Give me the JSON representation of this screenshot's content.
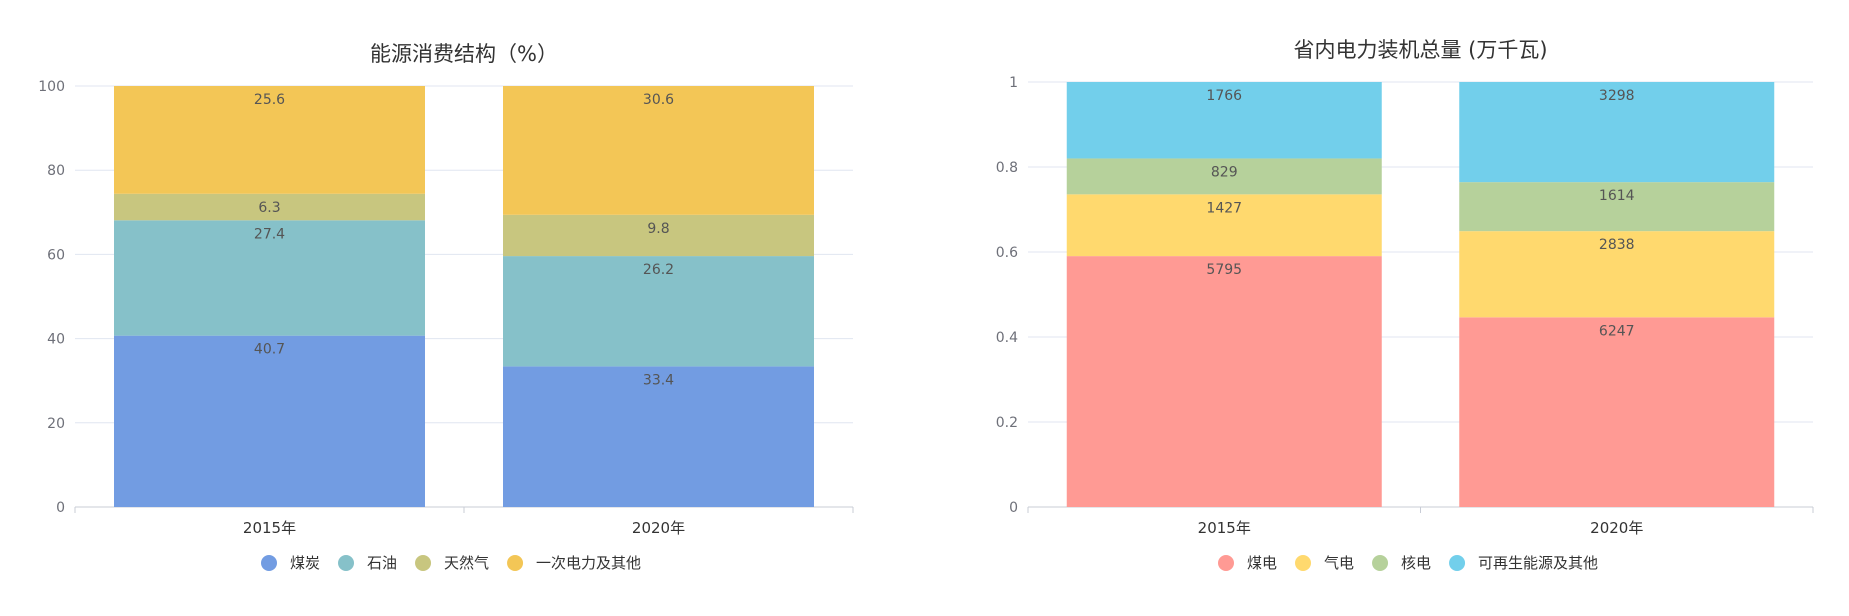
{
  "chart_data": [
    {
      "type": "bar",
      "stacked": true,
      "title": "能源消费结构（%）",
      "categories": [
        "2015年",
        "2020年"
      ],
      "ylim": [
        0,
        100
      ],
      "yticks": [
        "0",
        "20",
        "40",
        "60",
        "80",
        "100"
      ],
      "grid": true,
      "legend_position": "bottom",
      "series": [
        {
          "name": "煤炭",
          "values": [
            40.7,
            33.4
          ],
          "labels": [
            "40.7",
            "33.4"
          ],
          "color": "#729ce2"
        },
        {
          "name": "石油",
          "values": [
            27.4,
            26.2
          ],
          "labels": [
            "27.4",
            "26.2"
          ],
          "color": "#86c1c9"
        },
        {
          "name": "天然气",
          "values": [
            6.3,
            9.8
          ],
          "labels": [
            "6.3",
            "9.8"
          ],
          "color": "#c8c67f"
        },
        {
          "name": "一次电力及其他",
          "values": [
            25.6,
            30.6
          ],
          "labels": [
            "25.6",
            "30.6"
          ],
          "color": "#f3c656"
        }
      ]
    },
    {
      "type": "bar",
      "stacked": true,
      "normalized": true,
      "title": "省内电力装机总量 (万千瓦)",
      "categories": [
        "2015年",
        "2020年"
      ],
      "ylim": [
        0,
        1
      ],
      "yticks": [
        "0",
        "0.2",
        "0.4",
        "0.6",
        "0.8",
        "1"
      ],
      "grid": true,
      "legend_position": "bottom",
      "series": [
        {
          "name": "煤电",
          "values": [
            5795,
            6247
          ],
          "labels": [
            "5795",
            "6247"
          ],
          "color": "#ff9a94"
        },
        {
          "name": "气电",
          "values": [
            1427,
            2838
          ],
          "labels": [
            "1427",
            "2838"
          ],
          "color": "#ffd96e"
        },
        {
          "name": "核电",
          "values": [
            829,
            1614
          ],
          "labels": [
            "829",
            "1614"
          ],
          "color": "#b6d19b"
        },
        {
          "name": "可再生能源及其他",
          "values": [
            1766,
            3298
          ],
          "labels": [
            "1766",
            "3298"
          ],
          "color": "#72cfeb"
        }
      ]
    }
  ]
}
